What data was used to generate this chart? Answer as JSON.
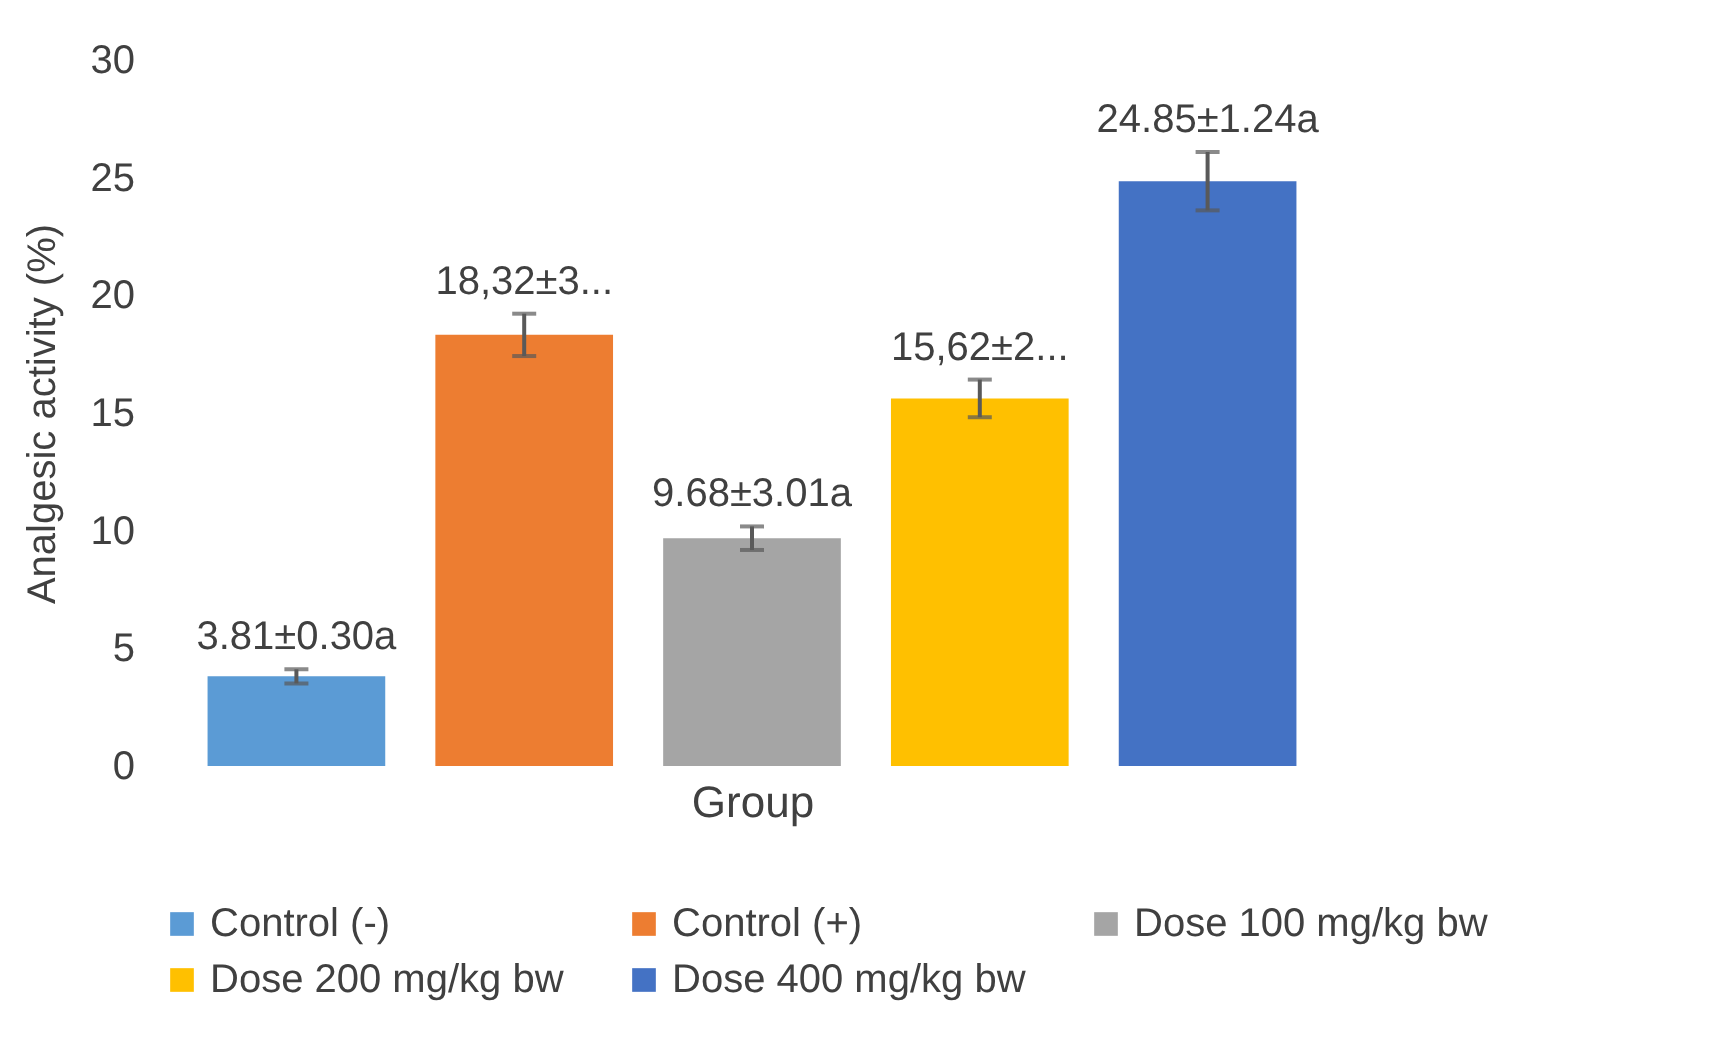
{
  "chart_data": {
    "type": "bar",
    "xlabel": "Group",
    "ylabel": "Analgesic activity (%)",
    "categories": [
      null
    ],
    "ylim": [
      0,
      30
    ],
    "yticks": [
      0,
      5,
      10,
      15,
      20,
      25,
      30
    ],
    "legend": "bottom",
    "series": [
      {
        "name": "Control (-)",
        "color": "#5b9bd5",
        "values": [
          3.81
        ],
        "errors": [
          0.3
        ],
        "value_labels": [
          "3.81±0.30a"
        ]
      },
      {
        "name": "Control (+)",
        "color": "#ed7d31",
        "values": [
          18.32
        ],
        "errors": [
          0.9
        ],
        "value_labels": [
          "18,32±3..."
        ]
      },
      {
        "name": "Dose 100 mg/kg bw",
        "color": "#a5a5a5",
        "values": [
          9.68
        ],
        "errors": [
          0.5
        ],
        "value_labels": [
          "9.68±3.01a"
        ]
      },
      {
        "name": "Dose 200 mg/kg bw",
        "color": "#ffc000",
        "values": [
          15.62
        ],
        "errors": [
          0.8
        ],
        "value_labels": [
          "15,62±2..."
        ]
      },
      {
        "name": "Dose 400 mg/kg bw",
        "color": "#4472c4",
        "values": [
          24.85
        ],
        "errors": [
          1.24
        ],
        "value_labels": [
          "24.85±1.24a"
        ]
      }
    ]
  }
}
